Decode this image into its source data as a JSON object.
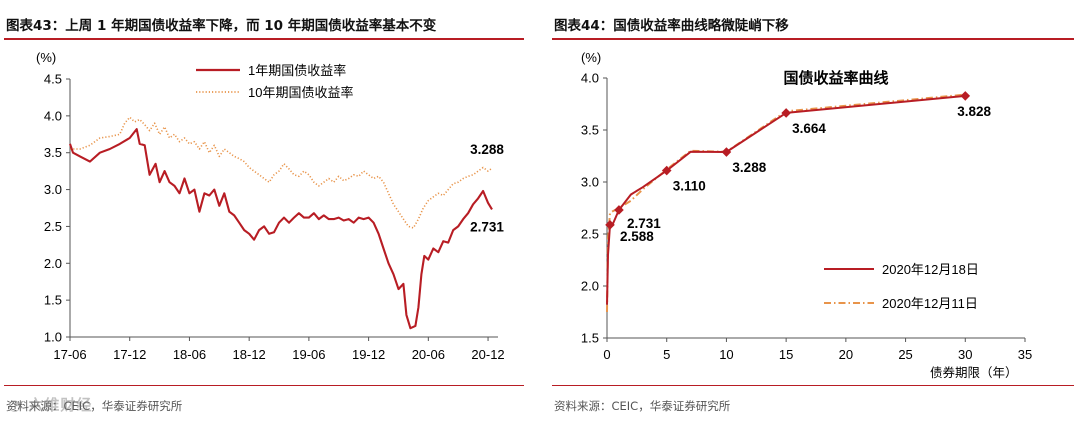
{
  "left": {
    "fig_title": "图表43：上周 1 年期国债收益率下降，而 10 年期国债收益率基本不变",
    "source": "资料来源：CEIC，华泰证券研究所",
    "watermark": "六维财经",
    "chart_data": {
      "type": "line",
      "y_unit": "(%)",
      "ylim": [
        1.0,
        4.5
      ],
      "yticks": [
        "1.0",
        "1.5",
        "2.0",
        "2.5",
        "3.0",
        "3.5",
        "4.0",
        "4.5"
      ],
      "xlim": [
        0,
        43
      ],
      "xticks": [
        {
          "label": "17-06",
          "x": 0
        },
        {
          "label": "17-12",
          "x": 6
        },
        {
          "label": "18-06",
          "x": 12
        },
        {
          "label": "18-12",
          "x": 18
        },
        {
          "label": "19-06",
          "x": 24
        },
        {
          "label": "19-12",
          "x": 30
        },
        {
          "label": "20-06",
          "x": 36
        },
        {
          "label": "20-12",
          "x": 42
        }
      ],
      "series": [
        {
          "name": "1年期国债收益率",
          "color": "#b81d24",
          "style": "solid",
          "points": [
            [
              0,
              3.62
            ],
            [
              0.3,
              3.5
            ],
            [
              1,
              3.45
            ],
            [
              2,
              3.38
            ],
            [
              3,
              3.5
            ],
            [
              4,
              3.55
            ],
            [
              5,
              3.62
            ],
            [
              6,
              3.7
            ],
            [
              6.7,
              3.82
            ],
            [
              7,
              3.62
            ],
            [
              7.5,
              3.6
            ],
            [
              8,
              3.2
            ],
            [
              8.6,
              3.35
            ],
            [
              9,
              3.1
            ],
            [
              9.5,
              3.25
            ],
            [
              10,
              3.1
            ],
            [
              10.5,
              3.05
            ],
            [
              11,
              2.95
            ],
            [
              11.5,
              3.15
            ],
            [
              12,
              2.95
            ],
            [
              12.5,
              3.0
            ],
            [
              13,
              2.7
            ],
            [
              13.5,
              2.95
            ],
            [
              14,
              2.92
            ],
            [
              14.5,
              3.0
            ],
            [
              15,
              2.78
            ],
            [
              15.5,
              2.95
            ],
            [
              16,
              2.7
            ],
            [
              16.5,
              2.65
            ],
            [
              17,
              2.55
            ],
            [
              17.5,
              2.45
            ],
            [
              18,
              2.4
            ],
            [
              18.5,
              2.32
            ],
            [
              19,
              2.45
            ],
            [
              19.5,
              2.5
            ],
            [
              20,
              2.4
            ],
            [
              20.5,
              2.42
            ],
            [
              21,
              2.55
            ],
            [
              21.5,
              2.62
            ],
            [
              22,
              2.55
            ],
            [
              22.5,
              2.62
            ],
            [
              23,
              2.68
            ],
            [
              23.5,
              2.62
            ],
            [
              24,
              2.62
            ],
            [
              24.5,
              2.68
            ],
            [
              25,
              2.6
            ],
            [
              25.5,
              2.65
            ],
            [
              26,
              2.6
            ],
            [
              26.5,
              2.6
            ],
            [
              27,
              2.62
            ],
            [
              27.5,
              2.58
            ],
            [
              28,
              2.6
            ],
            [
              28.5,
              2.55
            ],
            [
              29,
              2.62
            ],
            [
              29.5,
              2.6
            ],
            [
              30,
              2.62
            ],
            [
              30.5,
              2.55
            ],
            [
              31,
              2.4
            ],
            [
              31.5,
              2.2
            ],
            [
              32,
              2.0
            ],
            [
              32.5,
              1.85
            ],
            [
              33,
              1.65
            ],
            [
              33.5,
              1.72
            ],
            [
              33.8,
              1.3
            ],
            [
              34.2,
              1.12
            ],
            [
              34.7,
              1.15
            ],
            [
              35,
              1.4
            ],
            [
              35.3,
              1.85
            ],
            [
              35.6,
              2.1
            ],
            [
              36,
              2.05
            ],
            [
              36.5,
              2.2
            ],
            [
              37,
              2.15
            ],
            [
              37.5,
              2.3
            ],
            [
              38,
              2.28
            ],
            [
              38.5,
              2.45
            ],
            [
              39,
              2.5
            ],
            [
              39.5,
              2.6
            ],
            [
              40,
              2.68
            ],
            [
              40.5,
              2.8
            ],
            [
              41,
              2.88
            ],
            [
              41.5,
              2.98
            ],
            [
              42,
              2.82
            ],
            [
              42.4,
              2.731
            ]
          ]
        },
        {
          "name": "10年期国债收益率",
          "color": "#e8944a",
          "style": "dotted",
          "points": [
            [
              0,
              3.55
            ],
            [
              1,
              3.55
            ],
            [
              2,
              3.6
            ],
            [
              3,
              3.7
            ],
            [
              4,
              3.72
            ],
            [
              5,
              3.75
            ],
            [
              5.5,
              3.9
            ],
            [
              6,
              3.98
            ],
            [
              6.5,
              3.92
            ],
            [
              7,
              3.95
            ],
            [
              7.5,
              3.88
            ],
            [
              8,
              3.8
            ],
            [
              8.5,
              3.9
            ],
            [
              9,
              3.75
            ],
            [
              9.5,
              3.85
            ],
            [
              10,
              3.7
            ],
            [
              10.5,
              3.75
            ],
            [
              11,
              3.65
            ],
            [
              11.5,
              3.7
            ],
            [
              12,
              3.62
            ],
            [
              12.5,
              3.65
            ],
            [
              13,
              3.55
            ],
            [
              13.5,
              3.65
            ],
            [
              14,
              3.5
            ],
            [
              14.5,
              3.6
            ],
            [
              15,
              3.45
            ],
            [
              15.5,
              3.55
            ],
            [
              16,
              3.5
            ],
            [
              16.5,
              3.45
            ],
            [
              17,
              3.42
            ],
            [
              17.5,
              3.38
            ],
            [
              18,
              3.3
            ],
            [
              18.5,
              3.25
            ],
            [
              19,
              3.2
            ],
            [
              19.5,
              3.15
            ],
            [
              20,
              3.1
            ],
            [
              20.5,
              3.2
            ],
            [
              21,
              3.25
            ],
            [
              21.5,
              3.35
            ],
            [
              22,
              3.28
            ],
            [
              22.5,
              3.2
            ],
            [
              23,
              3.18
            ],
            [
              23.5,
              3.25
            ],
            [
              24,
              3.2
            ],
            [
              24.5,
              3.1
            ],
            [
              25,
              3.05
            ],
            [
              25.5,
              3.1
            ],
            [
              26,
              3.15
            ],
            [
              26.5,
              3.1
            ],
            [
              27,
              3.18
            ],
            [
              27.5,
              3.12
            ],
            [
              28,
              3.15
            ],
            [
              28.5,
              3.2
            ],
            [
              29,
              3.18
            ],
            [
              29.5,
              3.25
            ],
            [
              30,
              3.2
            ],
            [
              30.5,
              3.15
            ],
            [
              31,
              3.18
            ],
            [
              31.5,
              3.1
            ],
            [
              32,
              2.95
            ],
            [
              32.5,
              2.8
            ],
            [
              33,
              2.7
            ],
            [
              33.5,
              2.6
            ],
            [
              34,
              2.5
            ],
            [
              34.5,
              2.48
            ],
            [
              35,
              2.6
            ],
            [
              35.5,
              2.75
            ],
            [
              36,
              2.85
            ],
            [
              36.5,
              2.9
            ],
            [
              37,
              2.95
            ],
            [
              37.5,
              2.92
            ],
            [
              38,
              3.0
            ],
            [
              38.5,
              3.08
            ],
            [
              39,
              3.1
            ],
            [
              39.5,
              3.15
            ],
            [
              40,
              3.18
            ],
            [
              40.5,
              3.2
            ],
            [
              41,
              3.25
            ],
            [
              41.5,
              3.3
            ],
            [
              42,
              3.25
            ],
            [
              42.4,
              3.288
            ]
          ]
        }
      ],
      "annotations": [
        {
          "text": "3.288",
          "x": 40.2,
          "y": 3.55
        },
        {
          "text": "2.731",
          "x": 40.2,
          "y": 2.5
        }
      ]
    }
  },
  "right": {
    "fig_title": "图表44：国债收益率曲线略微陡峭下移",
    "source": "资料来源：CEIC，华泰证券研究所",
    "chart_data": {
      "type": "line",
      "title": "国债收益率曲线",
      "y_unit": "(%)",
      "xlabel": "债券期限（年）",
      "ylim": [
        1.5,
        4.0
      ],
      "yticks": [
        "1.5",
        "2.0",
        "2.5",
        "3.0",
        "3.5",
        "4.0"
      ],
      "xlim": [
        0,
        35
      ],
      "xticks": [
        "0",
        "5",
        "10",
        "15",
        "20",
        "25",
        "30",
        "35"
      ],
      "series": [
        {
          "name": "2020年12月18日",
          "color": "#b81d24",
          "style": "solid",
          "points": [
            [
              0,
              1.82
            ],
            [
              0.083,
              2.3
            ],
            [
              0.25,
              2.588
            ],
            [
              0.5,
              2.6
            ],
            [
              1,
              2.731
            ],
            [
              2,
              2.88
            ],
            [
              3,
              2.95
            ],
            [
              5,
              3.11
            ],
            [
              7,
              3.29
            ],
            [
              10,
              3.288
            ],
            [
              15,
              3.664
            ],
            [
              30,
              3.828
            ]
          ]
        },
        {
          "name": "2020年12月11日",
          "color": "#e8944a",
          "style": "dashdot",
          "points": [
            [
              0,
              1.75
            ],
            [
              0.083,
              2.45
            ],
            [
              0.25,
              2.7
            ],
            [
              0.5,
              2.72
            ],
            [
              1,
              2.75
            ],
            [
              2,
              2.82
            ],
            [
              3,
              2.93
            ],
            [
              5,
              3.12
            ],
            [
              7,
              3.3
            ],
            [
              10,
              3.29
            ],
            [
              15,
              3.68
            ],
            [
              30,
              3.84
            ]
          ]
        }
      ],
      "markers": [
        {
          "label": "2.588",
          "x": 0.25,
          "y": 2.588
        },
        {
          "label": "2.731",
          "x": 1,
          "y": 2.731
        },
        {
          "label": "3.110",
          "x": 5,
          "y": 3.11
        },
        {
          "label": "3.288",
          "x": 10,
          "y": 3.288
        },
        {
          "label": "3.664",
          "x": 15,
          "y": 3.664
        },
        {
          "label": "3.828",
          "x": 30,
          "y": 3.828
        }
      ]
    }
  }
}
